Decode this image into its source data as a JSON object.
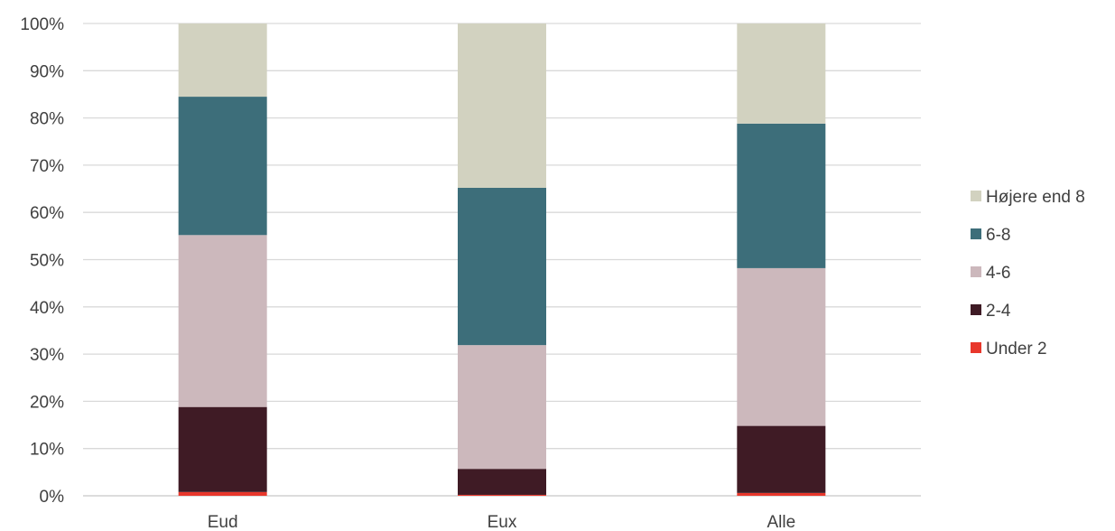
{
  "chart_data": {
    "type": "bar",
    "stacked": true,
    "percent_stacked": true,
    "categories": [
      "Eud",
      "Eux",
      "Alle"
    ],
    "series": [
      {
        "name": "Under 2",
        "color": "#e8372b",
        "values": [
          0.8,
          0.2,
          0.6
        ]
      },
      {
        "name": "2-4",
        "color": "#3f1b25",
        "values": [
          18.0,
          5.5,
          14.2
        ]
      },
      {
        "name": "4-6",
        "color": "#ccb8bc",
        "values": [
          36.4,
          26.2,
          33.4
        ]
      },
      {
        "name": "6-8",
        "color": "#3d6e7a",
        "values": [
          29.3,
          33.3,
          30.6
        ]
      },
      {
        "name": "Højere end 8",
        "color": "#d2d2c0",
        "values": [
          15.5,
          34.8,
          21.2
        ]
      }
    ],
    "ylim": [
      0,
      100
    ],
    "yticks": [
      "0%",
      "10%",
      "20%",
      "30%",
      "40%",
      "50%",
      "60%",
      "70%",
      "80%",
      "90%",
      "100%"
    ],
    "grid": true,
    "legend_position": "right",
    "title": "",
    "xlabel": "",
    "ylabel": ""
  }
}
